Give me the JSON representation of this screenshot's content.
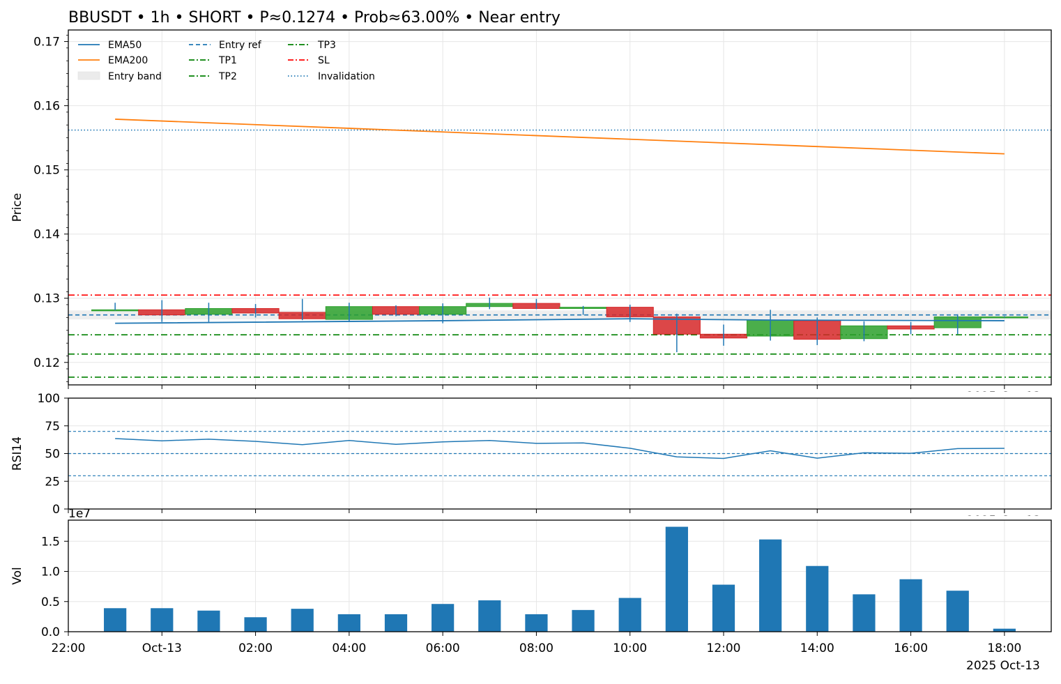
{
  "title": "BBUSDT • 1h • SHORT • P≈0.1274 • Prob≈63.00% • Near entry",
  "watermark": "2025 Oct-13",
  "chart_data": [
    {
      "type": "candlestick",
      "ylabel": "Price",
      "ylim": [
        0.1165,
        0.1718
      ],
      "yticks": [
        "0.12",
        "0.13",
        "0.14",
        "0.15",
        "0.16",
        "0.17"
      ],
      "ytick_values": [
        0.12,
        0.13,
        0.14,
        0.15,
        0.16,
        0.17
      ],
      "corner_label": "2025-Oct-13",
      "legend": [
        {
          "label": "EMA50",
          "style": "solid",
          "color": "#1f77b4"
        },
        {
          "label": "EMA200",
          "style": "solid",
          "color": "#ff7f0e"
        },
        {
          "label": "Entry band",
          "style": "band",
          "color": "#d9d9d9"
        },
        {
          "label": "Entry ref",
          "style": "dashed",
          "color": "#1f77b4"
        },
        {
          "label": "TP1",
          "style": "dashdot",
          "color": "#008000"
        },
        {
          "label": "TP2",
          "style": "dashdot",
          "color": "#008000"
        },
        {
          "label": "TP3",
          "style": "dashdot",
          "color": "#008000"
        },
        {
          "label": "SL",
          "style": "dashdot",
          "color": "#ff0000"
        },
        {
          "label": "Invalidation",
          "style": "dotted",
          "color": "#1f77b4"
        }
      ],
      "levels": {
        "entry_ref": 0.1274,
        "entry_band": [
          0.1267,
          0.1281
        ],
        "tp1": 0.1243,
        "tp2": 0.1213,
        "tp3": 0.1177,
        "sl": 0.1305,
        "invalidation": 0.1562
      },
      "candles": [
        {
          "t": 23,
          "o": 0.1282,
          "h": 0.1293,
          "l": 0.1281,
          "c": 0.1282
        },
        {
          "t": 24,
          "o": 0.1282,
          "h": 0.1297,
          "l": 0.1263,
          "c": 0.1274
        },
        {
          "t": 25,
          "o": 0.1275,
          "h": 0.1293,
          "l": 0.1263,
          "c": 0.1284
        },
        {
          "t": 26,
          "o": 0.1284,
          "h": 0.1291,
          "l": 0.127,
          "c": 0.1277
        },
        {
          "t": 27,
          "o": 0.1278,
          "h": 0.1299,
          "l": 0.1266,
          "c": 0.1268
        },
        {
          "t": 28,
          "o": 0.1267,
          "h": 0.1293,
          "l": 0.1263,
          "c": 0.1287
        },
        {
          "t": 29,
          "o": 0.1287,
          "h": 0.1289,
          "l": 0.1272,
          "c": 0.1275
        },
        {
          "t": 30,
          "o": 0.1275,
          "h": 0.1292,
          "l": 0.1261,
          "c": 0.1287
        },
        {
          "t": 31,
          "o": 0.1287,
          "h": 0.1301,
          "l": 0.1283,
          "c": 0.1292
        },
        {
          "t": 32,
          "o": 0.1292,
          "h": 0.1299,
          "l": 0.1283,
          "c": 0.1284
        },
        {
          "t": 33,
          "o": 0.1284,
          "h": 0.1288,
          "l": 0.1274,
          "c": 0.1286
        },
        {
          "t": 34,
          "o": 0.1286,
          "h": 0.129,
          "l": 0.1263,
          "c": 0.1271
        },
        {
          "t": 35,
          "o": 0.1271,
          "h": 0.1276,
          "l": 0.1216,
          "c": 0.1244
        },
        {
          "t": 36,
          "o": 0.1244,
          "h": 0.1259,
          "l": 0.1226,
          "c": 0.1238
        },
        {
          "t": 37,
          "o": 0.1241,
          "h": 0.1282,
          "l": 0.1234,
          "c": 0.1266
        },
        {
          "t": 38,
          "o": 0.1265,
          "h": 0.127,
          "l": 0.1227,
          "c": 0.1236
        },
        {
          "t": 39,
          "o": 0.1237,
          "h": 0.1264,
          "l": 0.1233,
          "c": 0.1257
        },
        {
          "t": 40,
          "o": 0.1257,
          "h": 0.1263,
          "l": 0.1244,
          "c": 0.1252
        },
        {
          "t": 41,
          "o": 0.1254,
          "h": 0.1275,
          "l": 0.1244,
          "c": 0.1271
        },
        {
          "t": 42,
          "o": 0.1271,
          "h": 0.1272,
          "l": 0.127,
          "c": 0.1271
        }
      ],
      "ema50": [
        [
          23,
          0.1261
        ],
        [
          30,
          0.1265
        ],
        [
          34,
          0.1268
        ],
        [
          37,
          0.1266
        ],
        [
          42,
          0.1265
        ]
      ],
      "ema200": [
        [
          23,
          0.1579
        ],
        [
          42,
          0.1525
        ]
      ]
    },
    {
      "type": "line",
      "ylabel": "RSI14",
      "ylim": [
        0,
        100
      ],
      "yticks": [
        "0",
        "25",
        "50",
        "75",
        "100"
      ],
      "ytick_values": [
        0,
        25,
        50,
        75,
        100
      ],
      "corner_label": "2025-Oct-13",
      "ref_lines": [
        70,
        50,
        30
      ],
      "series": [
        {
          "t": [
            23,
            24,
            25,
            26,
            27,
            28,
            29,
            30,
            31,
            32,
            33,
            34,
            35,
            36,
            37,
            38,
            39,
            40,
            41,
            42
          ],
          "values": [
            63.5,
            61.5,
            63,
            61,
            58,
            61.8,
            58.3,
            60.5,
            61.8,
            59.2,
            59.6,
            54.8,
            47,
            45.6,
            52.5,
            45.8,
            50.7,
            50.2,
            54.5,
            54.7
          ]
        }
      ]
    },
    {
      "type": "bar",
      "ylabel": "Vol",
      "ylim": [
        0,
        18500000.0
      ],
      "yticks": [
        "0.0",
        "0.5",
        "1.0",
        "1.5"
      ],
      "ytick_values": [
        0,
        5000000.0,
        10000000.0,
        15000000.0
      ],
      "offset_label": "1e7",
      "color": "#1f77b4",
      "series": [
        {
          "t": [
            23,
            24,
            25,
            26,
            27,
            28,
            29,
            30,
            31,
            32,
            33,
            34,
            35,
            36,
            37,
            38,
            39,
            40,
            41,
            42
          ],
          "values": [
            3900000.0,
            3900000.0,
            3500000.0,
            2400000.0,
            3800000.0,
            2900000.0,
            2900000.0,
            4600000.0,
            5200000.0,
            2900000.0,
            3600000.0,
            5600000.0,
            17400000.0,
            7800000.0,
            15300000.0,
            10900000.0,
            6200000.0,
            8700000.0,
            6800000.0,
            500000.0
          ]
        }
      ]
    }
  ],
  "xaxis": {
    "range": [
      22,
      43
    ],
    "ticks": [
      {
        "t": 22,
        "label": "22:00"
      },
      {
        "t": 24,
        "label": "Oct-13"
      },
      {
        "t": 26,
        "label": "02:00"
      },
      {
        "t": 28,
        "label": "04:00"
      },
      {
        "t": 30,
        "label": "06:00"
      },
      {
        "t": 32,
        "label": "08:00"
      },
      {
        "t": 34,
        "label": "10:00"
      },
      {
        "t": 36,
        "label": "12:00"
      },
      {
        "t": 38,
        "label": "14:00"
      },
      {
        "t": 40,
        "label": "16:00"
      },
      {
        "t": 42,
        "label": "18:00"
      }
    ]
  }
}
